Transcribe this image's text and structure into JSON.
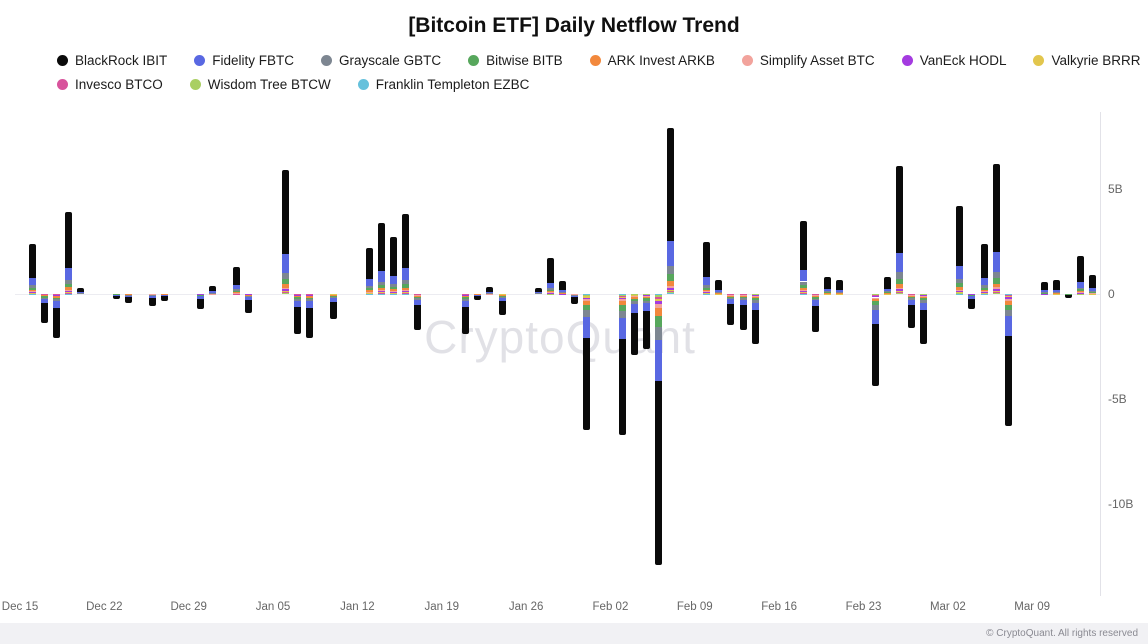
{
  "page": {
    "title": "[Bitcoin ETF] Daily Netflow Trend",
    "watermark": "CryptoQuant",
    "footer_copyright": "© CryptoQuant. All rights reserved"
  },
  "chart_data": {
    "type": "bar",
    "stacked": true,
    "title": "[Bitcoin ETF] Daily Netflow Trend",
    "ylim": [
      -14.3,
      8.7
    ],
    "grid": "zero-line-only",
    "legend_position": "top-left",
    "y_ticks": [
      {
        "value": 5,
        "label": "5B"
      },
      {
        "value": 0,
        "label": "0"
      },
      {
        "value": -5,
        "label": "-5B"
      },
      {
        "value": -10,
        "label": "-10B"
      }
    ],
    "x_range": [
      "2024-12-15",
      "2025-03-15"
    ],
    "x_ticks": [
      {
        "date": "2024-12-15",
        "label": "Dec 15"
      },
      {
        "date": "2024-12-22",
        "label": "Dec 22"
      },
      {
        "date": "2024-12-29",
        "label": "Dec 29"
      },
      {
        "date": "2025-01-05",
        "label": "Jan 05"
      },
      {
        "date": "2025-01-12",
        "label": "Jan 12"
      },
      {
        "date": "2025-01-19",
        "label": "Jan 19"
      },
      {
        "date": "2025-01-26",
        "label": "Jan 26"
      },
      {
        "date": "2025-02-02",
        "label": "Feb 02"
      },
      {
        "date": "2025-02-09",
        "label": "Feb 09"
      },
      {
        "date": "2025-02-16",
        "label": "Feb 16"
      },
      {
        "date": "2025-02-23",
        "label": "Feb 23"
      },
      {
        "date": "2025-03-02",
        "label": "Mar 02"
      },
      {
        "date": "2025-03-09",
        "label": "Mar 09"
      }
    ],
    "series_meta": [
      {
        "key": "ibit",
        "name": "BlackRock IBIT",
        "color": "#0a0a0a",
        "share": 0.68
      },
      {
        "key": "fbtc",
        "name": "Fidelity FBTC",
        "color": "#5968e2",
        "share": 0.15
      },
      {
        "key": "gbtc",
        "name": "Grayscale GBTC",
        "color": "#7d8691",
        "share": 0.05
      },
      {
        "key": "bitb",
        "name": "Bitwise BITB",
        "color": "#57a75c",
        "share": 0.04
      },
      {
        "key": "arkb",
        "name": "ARK Invest ARKB",
        "color": "#f2883c",
        "share": 0.03
      },
      {
        "key": "simplify",
        "name": "Simplify Asset BTC",
        "color": "#f2a39c",
        "share": 0.012
      },
      {
        "key": "hodl",
        "name": "VanEck HODL",
        "color": "#a43be0",
        "share": 0.012
      },
      {
        "key": "brrr",
        "name": "Valkyrie BRRR",
        "color": "#e2c64d",
        "share": 0.008
      },
      {
        "key": "btco",
        "name": "Invesco BTCO",
        "color": "#d8539c",
        "share": 0.007
      },
      {
        "key": "btcw",
        "name": "Wisdom Tree BTCW",
        "color": "#a9cf62",
        "share": 0.006
      },
      {
        "key": "ezbc",
        "name": "Franklin Templeton EZBC",
        "color": "#66c1dc",
        "share": 0.005
      }
    ],
    "legend_rows": [
      [
        "ibit",
        "fbtc",
        "gbtc",
        "bitb",
        "arkb",
        "simplify",
        "hodl",
        "brrr"
      ],
      [
        "btco",
        "btcw",
        "ezbc"
      ]
    ],
    "bars": [
      {
        "date": "2024-12-16",
        "value": 2.4
      },
      {
        "date": "2024-12-17",
        "value": -1.4
      },
      {
        "date": "2024-12-18",
        "value": -2.1
      },
      {
        "date": "2024-12-19",
        "value": 3.9
      },
      {
        "date": "2024-12-20",
        "value": 0.3
      },
      {
        "date": "2024-12-23",
        "value": -0.25
      },
      {
        "date": "2024-12-24",
        "value": -0.45
      },
      {
        "date": "2024-12-26",
        "value": -0.55
      },
      {
        "date": "2024-12-27",
        "value": -0.35
      },
      {
        "date": "2024-12-30",
        "value": -0.7
      },
      {
        "date": "2024-12-31",
        "value": 0.4
      },
      {
        "date": "2025-01-02",
        "value": 1.3
      },
      {
        "date": "2025-01-03",
        "value": -0.9
      },
      {
        "date": "2025-01-06",
        "value": 5.9
      },
      {
        "date": "2025-01-07",
        "value": -1.9
      },
      {
        "date": "2025-01-08",
        "value": -2.1
      },
      {
        "date": "2025-01-10",
        "value": -1.2
      },
      {
        "date": "2025-01-13",
        "value": 2.2
      },
      {
        "date": "2025-01-14",
        "value": 3.4
      },
      {
        "date": "2025-01-15",
        "value": 2.7
      },
      {
        "date": "2025-01-16",
        "value": 3.8
      },
      {
        "date": "2025-01-17",
        "value": -1.7
      },
      {
        "date": "2025-01-21",
        "value": -1.9
      },
      {
        "date": "2025-01-22",
        "value": -0.3
      },
      {
        "date": "2025-01-23",
        "value": 0.35
      },
      {
        "date": "2025-01-24",
        "value": -1.0
      },
      {
        "date": "2025-01-27",
        "value": 0.3
      },
      {
        "date": "2025-01-28",
        "value": 1.7
      },
      {
        "date": "2025-01-29",
        "value": 0.6
      },
      {
        "date": "2025-01-30",
        "value": -0.5
      },
      {
        "date": "2025-01-31",
        "value": -6.5
      },
      {
        "date": "2025-02-03",
        "value": -6.7
      },
      {
        "date": "2025-02-04",
        "value": -2.9
      },
      {
        "date": "2025-02-05",
        "value": -2.6
      },
      {
        "date": "2025-02-06",
        "value": -12.9
      },
      {
        "date": "2025-02-07",
        "value": 7.9
      },
      {
        "date": "2025-02-10",
        "value": 2.5
      },
      {
        "date": "2025-02-11",
        "value": 0.65
      },
      {
        "date": "2025-02-12",
        "value": -1.5
      },
      {
        "date": "2025-02-13",
        "value": -1.7
      },
      {
        "date": "2025-02-14",
        "value": -2.4
      },
      {
        "date": "2025-02-18",
        "value": 3.5
      },
      {
        "date": "2025-02-19",
        "value": -1.8
      },
      {
        "date": "2025-02-20",
        "value": 0.8
      },
      {
        "date": "2025-02-21",
        "value": 0.65
      },
      {
        "date": "2025-02-24",
        "value": -4.4
      },
      {
        "date": "2025-02-25",
        "value": 0.8
      },
      {
        "date": "2025-02-26",
        "value": 6.1
      },
      {
        "date": "2025-02-27",
        "value": -1.6
      },
      {
        "date": "2025-02-28",
        "value": -2.4
      },
      {
        "date": "2025-03-03",
        "value": 4.2
      },
      {
        "date": "2025-03-04",
        "value": -0.7
      },
      {
        "date": "2025-03-05",
        "value": 2.4
      },
      {
        "date": "2025-03-06",
        "value": 6.2
      },
      {
        "date": "2025-03-07",
        "value": -6.3
      },
      {
        "date": "2025-03-10",
        "value": 0.55
      },
      {
        "date": "2025-03-11",
        "value": 0.65
      },
      {
        "date": "2025-03-12",
        "value": -0.2
      },
      {
        "date": "2025-03-13",
        "value": 1.8
      },
      {
        "date": "2025-03-14",
        "value": 0.9
      }
    ]
  }
}
